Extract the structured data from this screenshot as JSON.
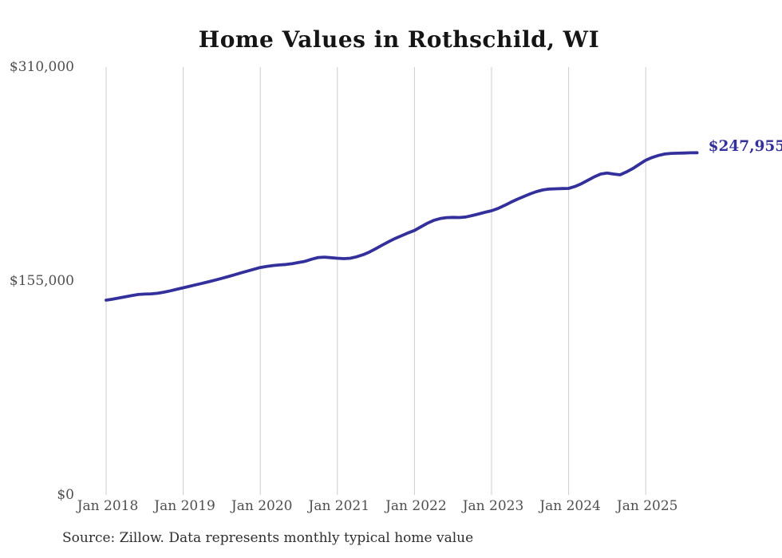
{
  "title": "Home Values in Rothschild, WI",
  "end_label": "$247,955",
  "source_note": "Source: Zillow. Data represents monthly typical home value",
  "colors": {
    "line": "#33309b",
    "grid": "#cccccc",
    "axis_text": "#4f4f4f",
    "title_text": "#151515",
    "end_label_text": "#33309b",
    "background": "#ffffff"
  },
  "chart_data": {
    "type": "line",
    "title": "Home Values in Rothschild, WI",
    "xlabel": "",
    "ylabel": "",
    "grid": "vertical-only",
    "legend": "none",
    "ylim": [
      0,
      310000
    ],
    "y_ticks": [
      {
        "value": 310000,
        "label": "$310,000"
      },
      {
        "value": 155000,
        "label": "$155,000"
      },
      {
        "value": 0,
        "label": "$0"
      }
    ],
    "x_tick_labels": [
      "Jan 2018",
      "Jan 2019",
      "Jan 2020",
      "Jan 2021",
      "Jan 2022",
      "Jan 2023",
      "Jan 2024",
      "Jan 2025"
    ],
    "x_start": "Jan 2018",
    "x_end": "Sep 2025",
    "points_per_year": 12,
    "latest_value": 247955,
    "annotation": "$247,955",
    "series": [
      {
        "name": "Monthly typical home value",
        "monthly_values": [
          141100,
          141900,
          142700,
          143600,
          144500,
          145200,
          145500,
          145700,
          146100,
          146900,
          147900,
          149000,
          150100,
          151200,
          152300,
          153400,
          154500,
          155700,
          156900,
          158200,
          159500,
          160900,
          162200,
          163500,
          164800,
          165600,
          166200,
          166600,
          167000,
          167600,
          168400,
          169300,
          170800,
          172000,
          172300,
          171900,
          171500,
          171200,
          171500,
          172500,
          174000,
          176000,
          178500,
          181000,
          183500,
          185800,
          187800,
          189800,
          191600,
          194200,
          196800,
          198900,
          200200,
          200900,
          201100,
          201000,
          201400,
          202400,
          203600,
          204800,
          205900,
          207500,
          209700,
          212000,
          214200,
          216200,
          218100,
          219800,
          221000,
          221600,
          221800,
          222000,
          222100,
          223500,
          225500,
          228000,
          230500,
          232500,
          233200,
          232500,
          231900,
          234000,
          236500,
          239500,
          242500,
          244500,
          246000,
          247000,
          247500,
          247600,
          247700,
          247900,
          247955
        ]
      }
    ]
  }
}
